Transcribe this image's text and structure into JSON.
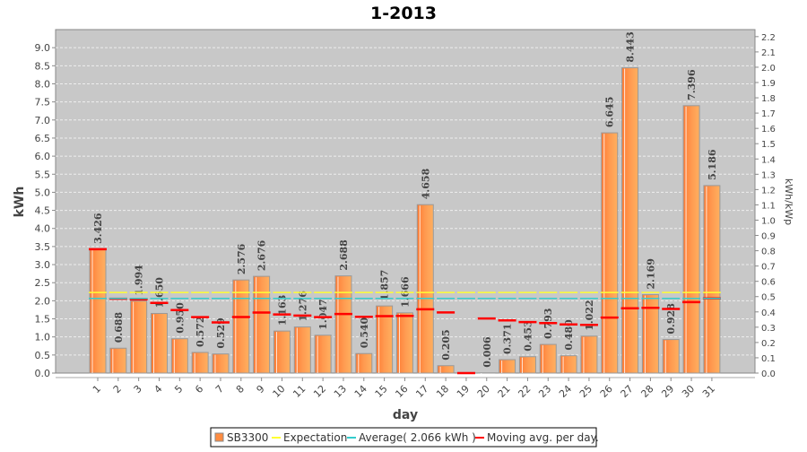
{
  "chart_data": {
    "type": "bar",
    "title": "1-2013",
    "xlabel": "day",
    "ylabel": "kWh",
    "ylabel_right": "kWh/kWp",
    "ylim": [
      0,
      9.5
    ],
    "ylim_right": [
      0,
      2.246
    ],
    "y_ticks": [
      "0.0",
      "0.5",
      "1.0",
      "1.5",
      "2.0",
      "2.5",
      "3.0",
      "3.5",
      "4.0",
      "4.5",
      "5.0",
      "5.5",
      "6.0",
      "6.5",
      "7.0",
      "7.5",
      "8.0",
      "8.5",
      "9.0"
    ],
    "y_ticks_right": [
      "0.0",
      "0.1",
      "0.2",
      "0.3",
      "0.4",
      "0.5",
      "0.6",
      "0.7",
      "0.8",
      "0.9",
      "1.0",
      "1.1",
      "1.2",
      "1.3",
      "1.4",
      "1.5",
      "1.6",
      "1.7",
      "1.8",
      "1.9",
      "2.0",
      "2.1",
      "2.2"
    ],
    "grid": true,
    "categories": [
      "1",
      "2",
      "3",
      "4",
      "5",
      "6",
      "7",
      "8",
      "9",
      "10",
      "11",
      "12",
      "13",
      "14",
      "15",
      "16",
      "17",
      "18",
      "19",
      "20",
      "21",
      "22",
      "23",
      "24",
      "25",
      "26",
      "27",
      "28",
      "29",
      "30",
      "31"
    ],
    "series": [
      {
        "name": "SB3300",
        "color": "#ff8c40",
        "values": [
          3.426,
          0.688,
          1.994,
          1.65,
          0.95,
          0.572,
          0.529,
          2.576,
          2.676,
          1.163,
          1.276,
          1.047,
          2.688,
          0.54,
          1.857,
          1.666,
          4.658,
          0.205,
          null,
          0.006,
          0.371,
          0.453,
          0.793,
          0.48,
          1.022,
          6.645,
          8.443,
          2.169,
          0.928,
          7.396,
          5.186
        ],
        "labels": [
          "3.426",
          "0.688",
          "1.994",
          "1.650",
          "0.950",
          "0.572",
          "0.529",
          "2.576",
          "2.676",
          "1.163",
          "1.276",
          "1.047",
          "2.688",
          "0.540",
          "1.857",
          "1.666",
          "4.658",
          "0.205",
          "",
          "0.006",
          "0.371",
          "0.453",
          "0.793",
          "0.480",
          "1.022",
          "6.645",
          "8.443",
          "2.169",
          "0.928",
          "7.396",
          "5.186"
        ]
      },
      {
        "name": "Expectation",
        "color": "#ffff33",
        "value": 2.23
      },
      {
        "name": "Average( 2.066 kWh )",
        "color": "#33cccc",
        "value": 2.066
      },
      {
        "name": "Moving avg. per day.",
        "color": "#ff0000",
        "values": [
          3.426,
          2.057,
          2.036,
          1.94,
          1.742,
          1.547,
          1.402,
          1.549,
          1.674,
          1.623,
          1.591,
          1.546,
          1.634,
          1.556,
          1.576,
          1.582,
          1.763,
          1.677,
          0,
          1.51,
          1.456,
          1.41,
          1.383,
          1.345,
          1.332,
          1.536,
          1.792,
          1.805,
          1.775,
          1.962,
          2.066
        ]
      }
    ],
    "legend": "bottom"
  }
}
